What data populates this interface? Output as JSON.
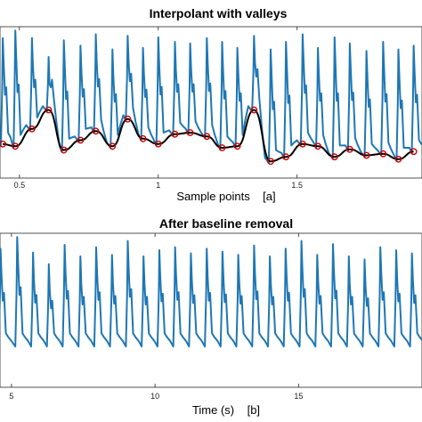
{
  "chart_data": [
    {
      "type": "line",
      "title": "Interpolant with valleys",
      "xlabel": "Sample points    [a]",
      "ylabel": "",
      "x_ticks": [
        0.5,
        1,
        1.5
      ],
      "x_tick_labels": [
        "0.5",
        "1",
        "1.5"
      ],
      "xlim": [
        0.43,
        1.95
      ],
      "ylim": [
        -1,
        1
      ],
      "grid": false,
      "series": [
        {
          "color": "#1f77b4",
          "peaks_x": [
            0.44,
            0.485,
            0.545,
            0.605,
            0.66,
            0.72,
            0.775,
            0.835,
            0.89,
            0.945,
            1.0,
            1.06,
            1.115,
            1.175,
            1.23,
            1.285,
            1.345,
            1.405,
            1.46,
            1.52,
            1.575,
            1.635,
            1.69,
            1.75,
            1.81,
            1.865,
            1.92
          ],
          "peaks_y": [
            0.85,
            0.95,
            0.85,
            0.6,
            0.82,
            0.75,
            0.9,
            0.7,
            0.88,
            0.72,
            0.86,
            0.8,
            0.78,
            0.85,
            0.8,
            0.72,
            0.88,
            0.7,
            0.8,
            0.9,
            0.72,
            0.86,
            0.78,
            0.68,
            0.8,
            0.7,
            0.75
          ]
        },
        {
          "color": "#000000",
          "x": [
            0.44,
            0.485,
            0.545,
            0.605,
            0.66,
            0.72,
            0.775,
            0.835,
            0.89,
            0.945,
            1.0,
            1.06,
            1.115,
            1.175,
            1.23,
            1.285,
            1.345,
            1.405,
            1.46,
            1.52,
            1.575,
            1.635,
            1.69,
            1.75,
            1.81,
            1.865,
            1.92
          ],
          "y": [
            -0.55,
            -0.58,
            -0.35,
            -0.1,
            -0.63,
            -0.5,
            -0.38,
            -0.58,
            -0.22,
            -0.48,
            -0.55,
            -0.42,
            -0.4,
            -0.45,
            -0.6,
            -0.58,
            -0.1,
            -0.78,
            -0.72,
            -0.55,
            -0.58,
            -0.72,
            -0.62,
            -0.7,
            -0.68,
            -0.75,
            -0.65
          ]
        },
        {
          "color": "#cc0000",
          "marker": "o",
          "x": [
            0.44,
            0.485,
            0.545,
            0.605,
            0.66,
            0.72,
            0.775,
            0.835,
            0.89,
            0.945,
            1.0,
            1.06,
            1.115,
            1.175,
            1.23,
            1.285,
            1.345,
            1.405,
            1.46,
            1.52,
            1.575,
            1.635,
            1.69,
            1.75,
            1.81,
            1.865,
            1.92
          ],
          "y": [
            -0.55,
            -0.58,
            -0.35,
            -0.1,
            -0.63,
            -0.5,
            -0.38,
            -0.58,
            -0.22,
            -0.48,
            -0.55,
            -0.42,
            -0.4,
            -0.45,
            -0.6,
            -0.58,
            -0.1,
            -0.78,
            -0.72,
            -0.55,
            -0.58,
            -0.72,
            -0.62,
            -0.7,
            -0.68,
            -0.75,
            -0.65
          ]
        }
      ]
    },
    {
      "type": "line",
      "title": "After baseline removal",
      "xlabel": "Time (s)    [b]",
      "ylabel": "",
      "x_ticks": [
        5,
        10,
        15
      ],
      "x_tick_labels": [
        "5",
        "10",
        "15"
      ],
      "xlim": [
        4.6,
        19.3
      ],
      "ylim": [
        -1,
        1
      ],
      "grid": false,
      "series": [
        {
          "color": "#1f77b4",
          "peaks_x": [
            4.62,
            5.2,
            5.75,
            6.3,
            6.85,
            7.4,
            7.95,
            8.5,
            9.05,
            9.6,
            10.15,
            10.7,
            11.25,
            11.8,
            12.35,
            12.9,
            13.45,
            14.0,
            14.55,
            15.1,
            15.65,
            16.2,
            16.75,
            17.3,
            17.85,
            18.4,
            18.95
          ],
          "peaks_y": [
            0.8,
            0.95,
            0.75,
            0.6,
            0.85,
            0.7,
            0.82,
            0.72,
            0.9,
            0.7,
            0.78,
            0.82,
            0.74,
            0.8,
            0.76,
            0.72,
            0.84,
            0.7,
            0.8,
            0.9,
            0.72,
            0.86,
            0.7,
            0.66,
            0.82,
            0.78,
            0.74
          ]
        }
      ]
    }
  ]
}
